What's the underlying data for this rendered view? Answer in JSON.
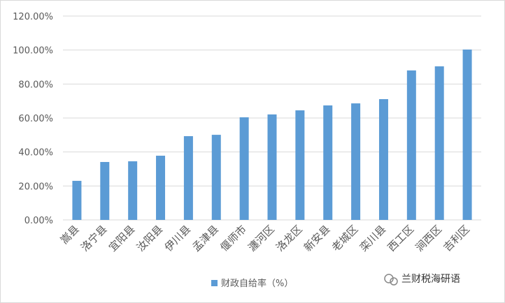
{
  "chart_data": {
    "type": "bar",
    "categories": [
      "嵩县",
      "洛宁县",
      "宜阳县",
      "汝阳县",
      "伊川县",
      "孟津县",
      "偃师市",
      "瀍河区",
      "洛龙区",
      "新安县",
      "老城区",
      "栾川县",
      "西工区",
      "涧西区",
      "吉利区"
    ],
    "series": [
      {
        "name": "财政自给率（%）",
        "color": "#5b9bd5",
        "values": [
          23.0,
          34.1,
          34.5,
          37.8,
          49.3,
          50.1,
          60.4,
          62.1,
          64.5,
          67.4,
          68.6,
          71.1,
          88.0,
          90.4,
          100.3
        ]
      }
    ],
    "ylim": [
      0,
      120
    ],
    "yticks": [
      {
        "value": 0,
        "label": "0.00%"
      },
      {
        "value": 20,
        "label": "20.00%"
      },
      {
        "value": 40,
        "label": "40.00%"
      },
      {
        "value": 60,
        "label": "60.00%"
      },
      {
        "value": 80,
        "label": "80.00%"
      },
      {
        "value": 100,
        "label": "100.00%"
      },
      {
        "value": 120,
        "label": "120.00%"
      }
    ],
    "grid": true,
    "legend": "bottom",
    "watermark": "兰财税海研语"
  }
}
